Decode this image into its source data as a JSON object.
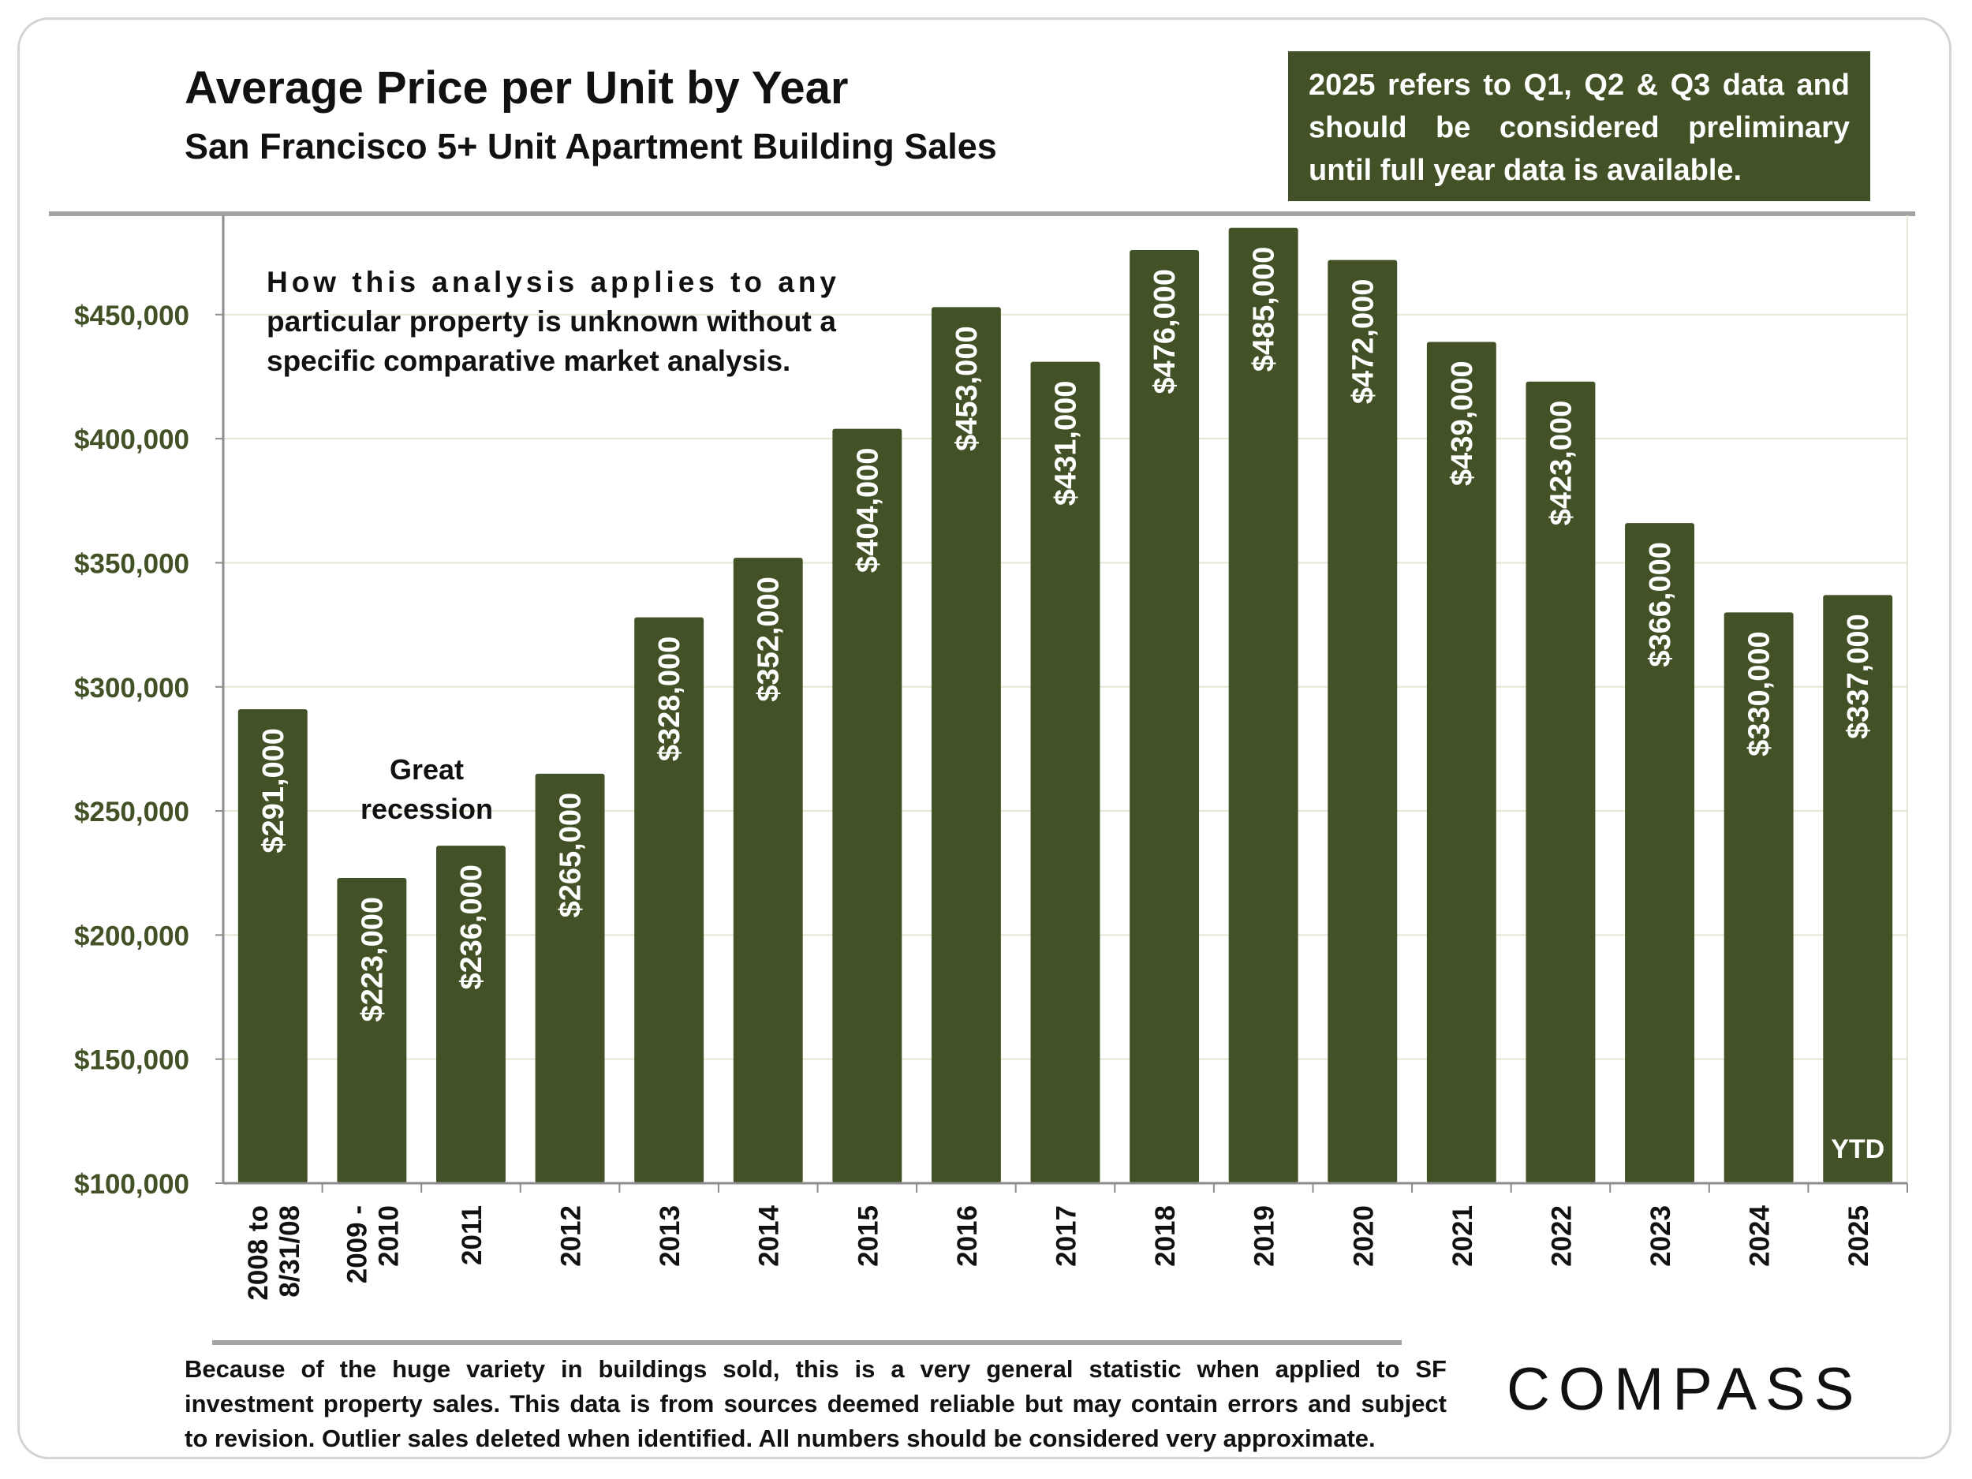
{
  "title": "Average Price per Unit by Year",
  "subtitle": "San Francisco 5+ Unit Apartment Building Sales",
  "note_box": {
    "lines": [
      "2025 refers to Q1, Q2 & Q3 data and",
      "should be considered preliminary",
      "until full year data is available."
    ],
    "background": "#435226"
  },
  "disclaimer_lines": [
    "How this analysis applies to any",
    "particular property is unknown without a",
    "specific comparative market analysis."
  ],
  "annotation_lines": [
    "Great",
    "recession"
  ],
  "ytd_label": "YTD",
  "footer_lines": [
    "Because of the huge variety in buildings sold, this is a very general statistic when applied to SF",
    "investment property sales. This data is from sources deemed reliable but may contain errors and subject",
    "to revision. Outlier sales deleted when identified. All numbers should be considered very approximate."
  ],
  "logo_text": "COMPASS",
  "colors": {
    "bar": "#435226",
    "axis_label": "#435226",
    "grid": "#e3e8d2"
  },
  "chart_data": {
    "type": "bar",
    "categories": [
      [
        "2008 to",
        "8/31/08"
      ],
      [
        "2009 -",
        "2010"
      ],
      [
        "2011"
      ],
      [
        "2012"
      ],
      [
        "2013"
      ],
      [
        "2014"
      ],
      [
        "2015"
      ],
      [
        "2016"
      ],
      [
        "2017"
      ],
      [
        "2018"
      ],
      [
        "2019"
      ],
      [
        "2020"
      ],
      [
        "2021"
      ],
      [
        "2022"
      ],
      [
        "2023"
      ],
      [
        "2024"
      ],
      [
        "2025"
      ]
    ],
    "values": [
      291000,
      223000,
      236000,
      265000,
      328000,
      352000,
      404000,
      453000,
      431000,
      476000,
      485000,
      472000,
      439000,
      423000,
      366000,
      330000,
      337000
    ],
    "value_labels": [
      "$291,000",
      "$223,000",
      "$236,000",
      "$265,000",
      "$328,000",
      "$352,000",
      "$404,000",
      "$453,000",
      "$431,000",
      "$476,000",
      "$485,000",
      "$472,000",
      "$439,000",
      "$423,000",
      "$366,000",
      "$330,000",
      "$337,000"
    ],
    "y_ticks": [
      100000,
      150000,
      200000,
      250000,
      300000,
      350000,
      400000,
      450000
    ],
    "y_tick_labels": [
      "$100,000",
      "$150,000",
      "$200,000",
      "$250,000",
      "$300,000",
      "$350,000",
      "$400,000",
      "$450,000"
    ],
    "ylim": [
      100000,
      490000
    ],
    "grid": true,
    "xlabel": "",
    "ylabel": ""
  }
}
